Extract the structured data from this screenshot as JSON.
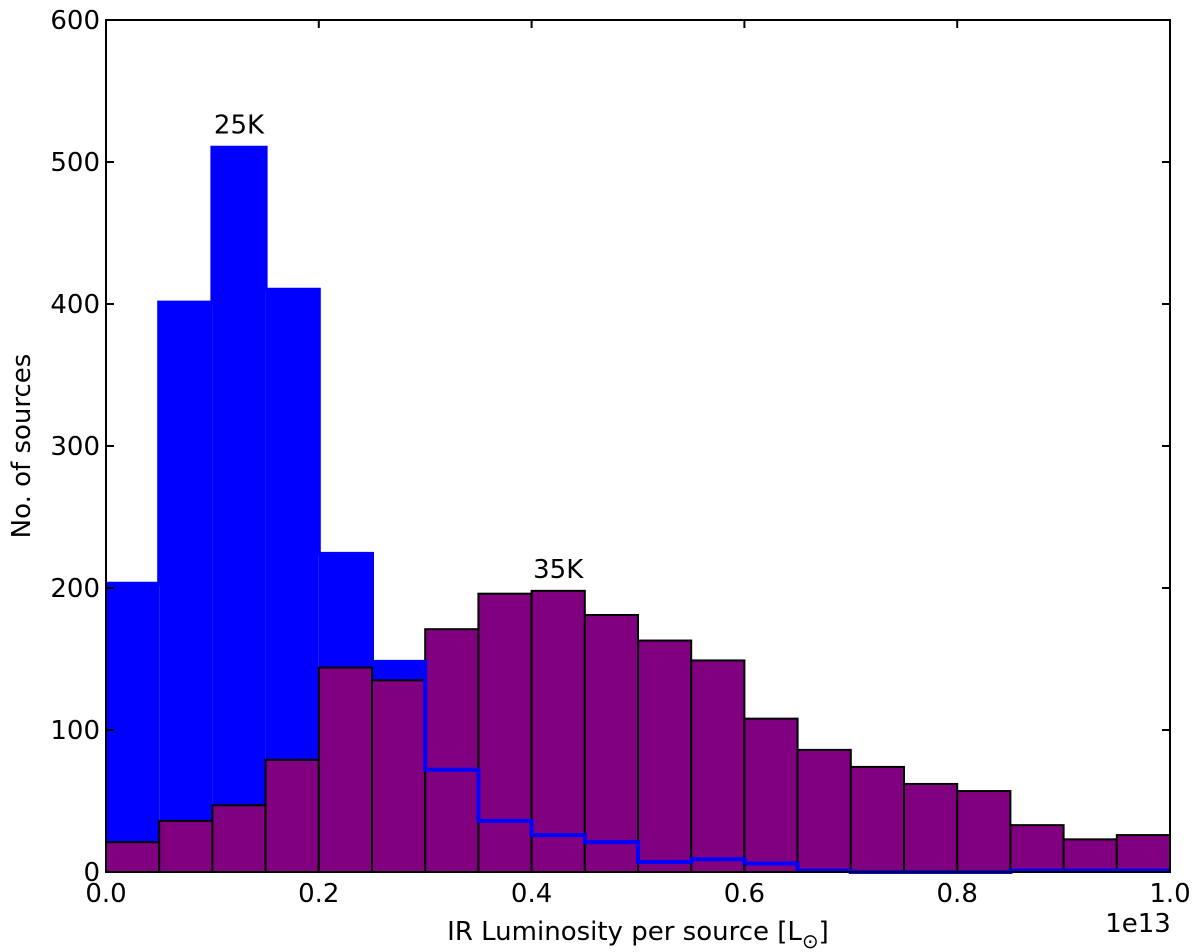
{
  "chart_data": {
    "type": "bar",
    "xlabel_text": "IR Luminosity per source [L",
    "xlabel_sub": "⊙",
    "xlabel_close": "]",
    "ylabel": "No. of sources",
    "x_offset_label": "1e13",
    "xlim": [
      0.0,
      1.0
    ],
    "ylim": [
      0,
      600
    ],
    "bin_edges": [
      0.0,
      0.05,
      0.1,
      0.15,
      0.2,
      0.25,
      0.3,
      0.35,
      0.4,
      0.45,
      0.5,
      0.55,
      0.6,
      0.65,
      0.7,
      0.75,
      0.8,
      0.85,
      0.9,
      0.95,
      1.0
    ],
    "x_tick_labels": [
      "0.0",
      "0.2",
      "0.4",
      "0.6",
      "0.8",
      "1.0"
    ],
    "x_ticks": [
      0.0,
      0.2,
      0.4,
      0.6,
      0.8,
      1.0
    ],
    "y_ticks": [
      0,
      100,
      200,
      300,
      400,
      500,
      600
    ],
    "y_tick_labels": [
      "0",
      "100",
      "200",
      "300",
      "400",
      "500",
      "600"
    ],
    "series": [
      {
        "name": "25K",
        "color": "#0000ff",
        "values": [
          203,
          401,
          510,
          410,
          224,
          148,
          72,
          36,
          26,
          21,
          7,
          9,
          6,
          1,
          0,
          0,
          0,
          1,
          1,
          1
        ]
      },
      {
        "name": "35K",
        "color": "#800080",
        "values": [
          21,
          36,
          47,
          79,
          144,
          135,
          171,
          196,
          198,
          181,
          163,
          149,
          108,
          86,
          74,
          62,
          57,
          33,
          23,
          26
        ]
      }
    ],
    "annotations": [
      {
        "text": "25K",
        "x": 0.125,
        "y": 520
      },
      {
        "text": "35K",
        "x": 0.425,
        "y": 207
      }
    ],
    "grid": false,
    "legend": "none"
  }
}
